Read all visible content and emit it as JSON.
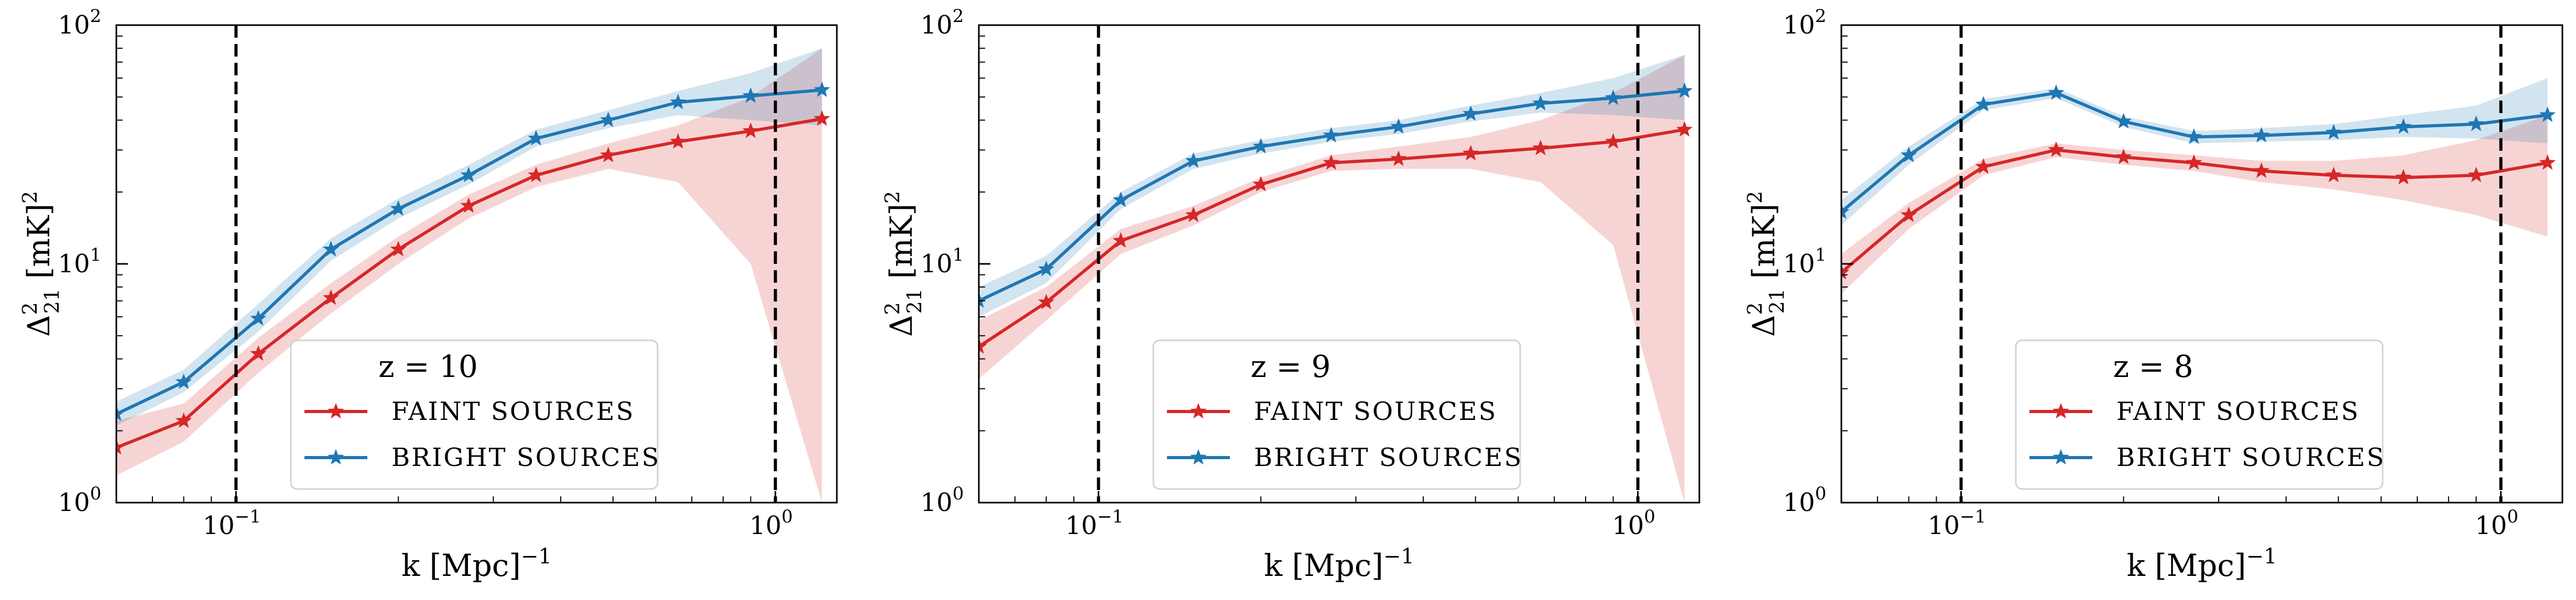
{
  "chart_data": [
    {
      "type": "line",
      "title": "",
      "legend_title": "z = 10",
      "legend_title_parts": {
        "name": "z",
        "eq": " = ",
        "value": "10"
      },
      "xlabel": "k [Mpc]",
      "xlabel_sup": "−1",
      "ylabel_base": "Δ",
      "ylabel_sup": "2",
      "ylabel_sub": "21",
      "ylabel_unit": " [mK]",
      "ylabel_unit_sup": "2",
      "xscale": "log",
      "yscale": "log",
      "xlim": [
        0.06,
        1.3
      ],
      "ylim": [
        1,
        100
      ],
      "xticks": [
        {
          "value": 0.1,
          "base": "10",
          "exp": "−1"
        },
        {
          "value": 1,
          "base": "10",
          "exp": "0"
        }
      ],
      "yticks": [
        {
          "value": 1,
          "base": "10",
          "exp": "0"
        },
        {
          "value": 10,
          "base": "10",
          "exp": "1"
        },
        {
          "value": 100,
          "base": "10",
          "exp": "2"
        }
      ],
      "vlines": [
        0.1,
        1.0
      ],
      "grid": false,
      "legend_position": "lower-center",
      "x": [
        0.06,
        0.08,
        0.11,
        0.15,
        0.2,
        0.27,
        0.36,
        0.49,
        0.66,
        0.9,
        1.22
      ],
      "series": [
        {
          "name": "FAINT SOURCES",
          "color": "#d62728",
          "values": [
            1.7,
            2.2,
            4.2,
            7.2,
            11.5,
            17.5,
            23.5,
            28.5,
            32.5,
            36.0,
            40.5
          ],
          "lower": [
            1.3,
            1.8,
            3.5,
            6.2,
            10.0,
            15.5,
            21.0,
            25.0,
            22.0,
            10.0,
            1.0
          ],
          "upper": [
            2.2,
            2.6,
            4.9,
            8.3,
            13.0,
            19.5,
            26.0,
            32.0,
            38.0,
            50.0,
            80.0
          ]
        },
        {
          "name": "BRIGHT SOURCES",
          "color": "#1f77b4",
          "values": [
            2.35,
            3.2,
            5.9,
            11.5,
            17.0,
            23.5,
            33.5,
            40.0,
            47.5,
            50.5,
            53.5
          ],
          "lower": [
            2.1,
            2.9,
            5.2,
            10.3,
            15.5,
            21.5,
            31.0,
            37.0,
            42.0,
            40.0,
            38.0
          ],
          "upper": [
            2.65,
            3.6,
            6.8,
            12.8,
            18.8,
            26.0,
            36.5,
            44.0,
            53.0,
            63.0,
            80.0
          ]
        }
      ]
    },
    {
      "type": "line",
      "title": "",
      "legend_title": "z = 9",
      "legend_title_parts": {
        "name": "z",
        "eq": " = ",
        "value": "9"
      },
      "xlabel": "k [Mpc]",
      "xlabel_sup": "−1",
      "ylabel_base": "Δ",
      "ylabel_sup": "2",
      "ylabel_sub": "21",
      "ylabel_unit": " [mK]",
      "ylabel_unit_sup": "2",
      "xscale": "log",
      "yscale": "log",
      "xlim": [
        0.06,
        1.3
      ],
      "ylim": [
        1,
        100
      ],
      "xticks": [
        {
          "value": 0.1,
          "base": "10",
          "exp": "−1"
        },
        {
          "value": 1,
          "base": "10",
          "exp": "0"
        }
      ],
      "yticks": [
        {
          "value": 1,
          "base": "10",
          "exp": "0"
        },
        {
          "value": 10,
          "base": "10",
          "exp": "1"
        },
        {
          "value": 100,
          "base": "10",
          "exp": "2"
        }
      ],
      "vlines": [
        0.1,
        1.0
      ],
      "grid": false,
      "legend_position": "lower-center",
      "x": [
        0.06,
        0.08,
        0.11,
        0.15,
        0.2,
        0.27,
        0.36,
        0.49,
        0.66,
        0.9,
        1.22
      ],
      "series": [
        {
          "name": "FAINT SOURCES",
          "color": "#d62728",
          "values": [
            4.5,
            6.9,
            12.5,
            16.0,
            21.5,
            26.5,
            27.5,
            29.0,
            30.5,
            32.5,
            36.5
          ],
          "lower": [
            3.3,
            5.8,
            11.0,
            14.5,
            20.0,
            24.5,
            25.0,
            25.0,
            22.0,
            12.0,
            1.0
          ],
          "upper": [
            5.8,
            8.0,
            14.0,
            17.5,
            23.0,
            28.5,
            31.0,
            34.0,
            40.0,
            52.0,
            75.0
          ]
        },
        {
          "name": "BRIGHT SOURCES",
          "color": "#1f77b4",
          "values": [
            7.0,
            9.5,
            18.5,
            27.0,
            31.0,
            34.5,
            37.5,
            42.5,
            47.0,
            49.5,
            53.0
          ],
          "lower": [
            6.0,
            8.3,
            17.0,
            25.0,
            29.0,
            32.5,
            35.0,
            39.5,
            43.0,
            42.0,
            40.0
          ],
          "upper": [
            8.0,
            10.8,
            20.0,
            29.0,
            33.0,
            37.0,
            40.0,
            46.0,
            52.0,
            60.0,
            75.0
          ]
        }
      ]
    },
    {
      "type": "line",
      "title": "",
      "legend_title": "z = 8",
      "legend_title_parts": {
        "name": "z",
        "eq": " = ",
        "value": "8"
      },
      "xlabel": "k [Mpc]",
      "xlabel_sup": "−1",
      "ylabel_base": "Δ",
      "ylabel_sup": "2",
      "ylabel_sub": "21",
      "ylabel_unit": " [mK]",
      "ylabel_unit_sup": "2",
      "xscale": "log",
      "yscale": "log",
      "xlim": [
        0.06,
        1.3
      ],
      "ylim": [
        1,
        100
      ],
      "xticks": [
        {
          "value": 0.1,
          "base": "10",
          "exp": "−1"
        },
        {
          "value": 1,
          "base": "10",
          "exp": "0"
        }
      ],
      "yticks": [
        {
          "value": 1,
          "base": "10",
          "exp": "0"
        },
        {
          "value": 10,
          "base": "10",
          "exp": "1"
        },
        {
          "value": 100,
          "base": "10",
          "exp": "2"
        }
      ],
      "vlines": [
        0.1,
        1.0
      ],
      "grid": false,
      "legend_position": "lower-center",
      "x": [
        0.06,
        0.08,
        0.11,
        0.15,
        0.2,
        0.27,
        0.36,
        0.49,
        0.66,
        0.9,
        1.22
      ],
      "series": [
        {
          "name": "FAINT SOURCES",
          "color": "#d62728",
          "values": [
            9.2,
            16.0,
            25.5,
            30.0,
            28.0,
            26.5,
            24.5,
            23.5,
            23.0,
            23.5,
            26.5
          ],
          "lower": [
            7.5,
            14.0,
            23.5,
            28.0,
            26.0,
            24.5,
            22.0,
            20.5,
            18.5,
            16.0,
            13.0
          ],
          "upper": [
            11.0,
            18.0,
            27.5,
            32.0,
            30.0,
            28.5,
            27.0,
            27.0,
            28.5,
            33.0,
            42.0
          ]
        },
        {
          "name": "BRIGHT SOURCES",
          "color": "#1f77b4",
          "values": [
            16.5,
            28.5,
            46.5,
            52.0,
            39.5,
            34.0,
            34.5,
            35.5,
            37.5,
            38.5,
            42.0
          ],
          "lower": [
            14.5,
            26.0,
            44.0,
            49.5,
            37.5,
            32.0,
            32.5,
            33.0,
            34.0,
            33.5,
            32.0
          ],
          "upper": [
            18.5,
            31.0,
            49.0,
            54.5,
            41.5,
            36.0,
            37.0,
            38.5,
            42.0,
            46.0,
            60.0
          ]
        }
      ]
    }
  ]
}
